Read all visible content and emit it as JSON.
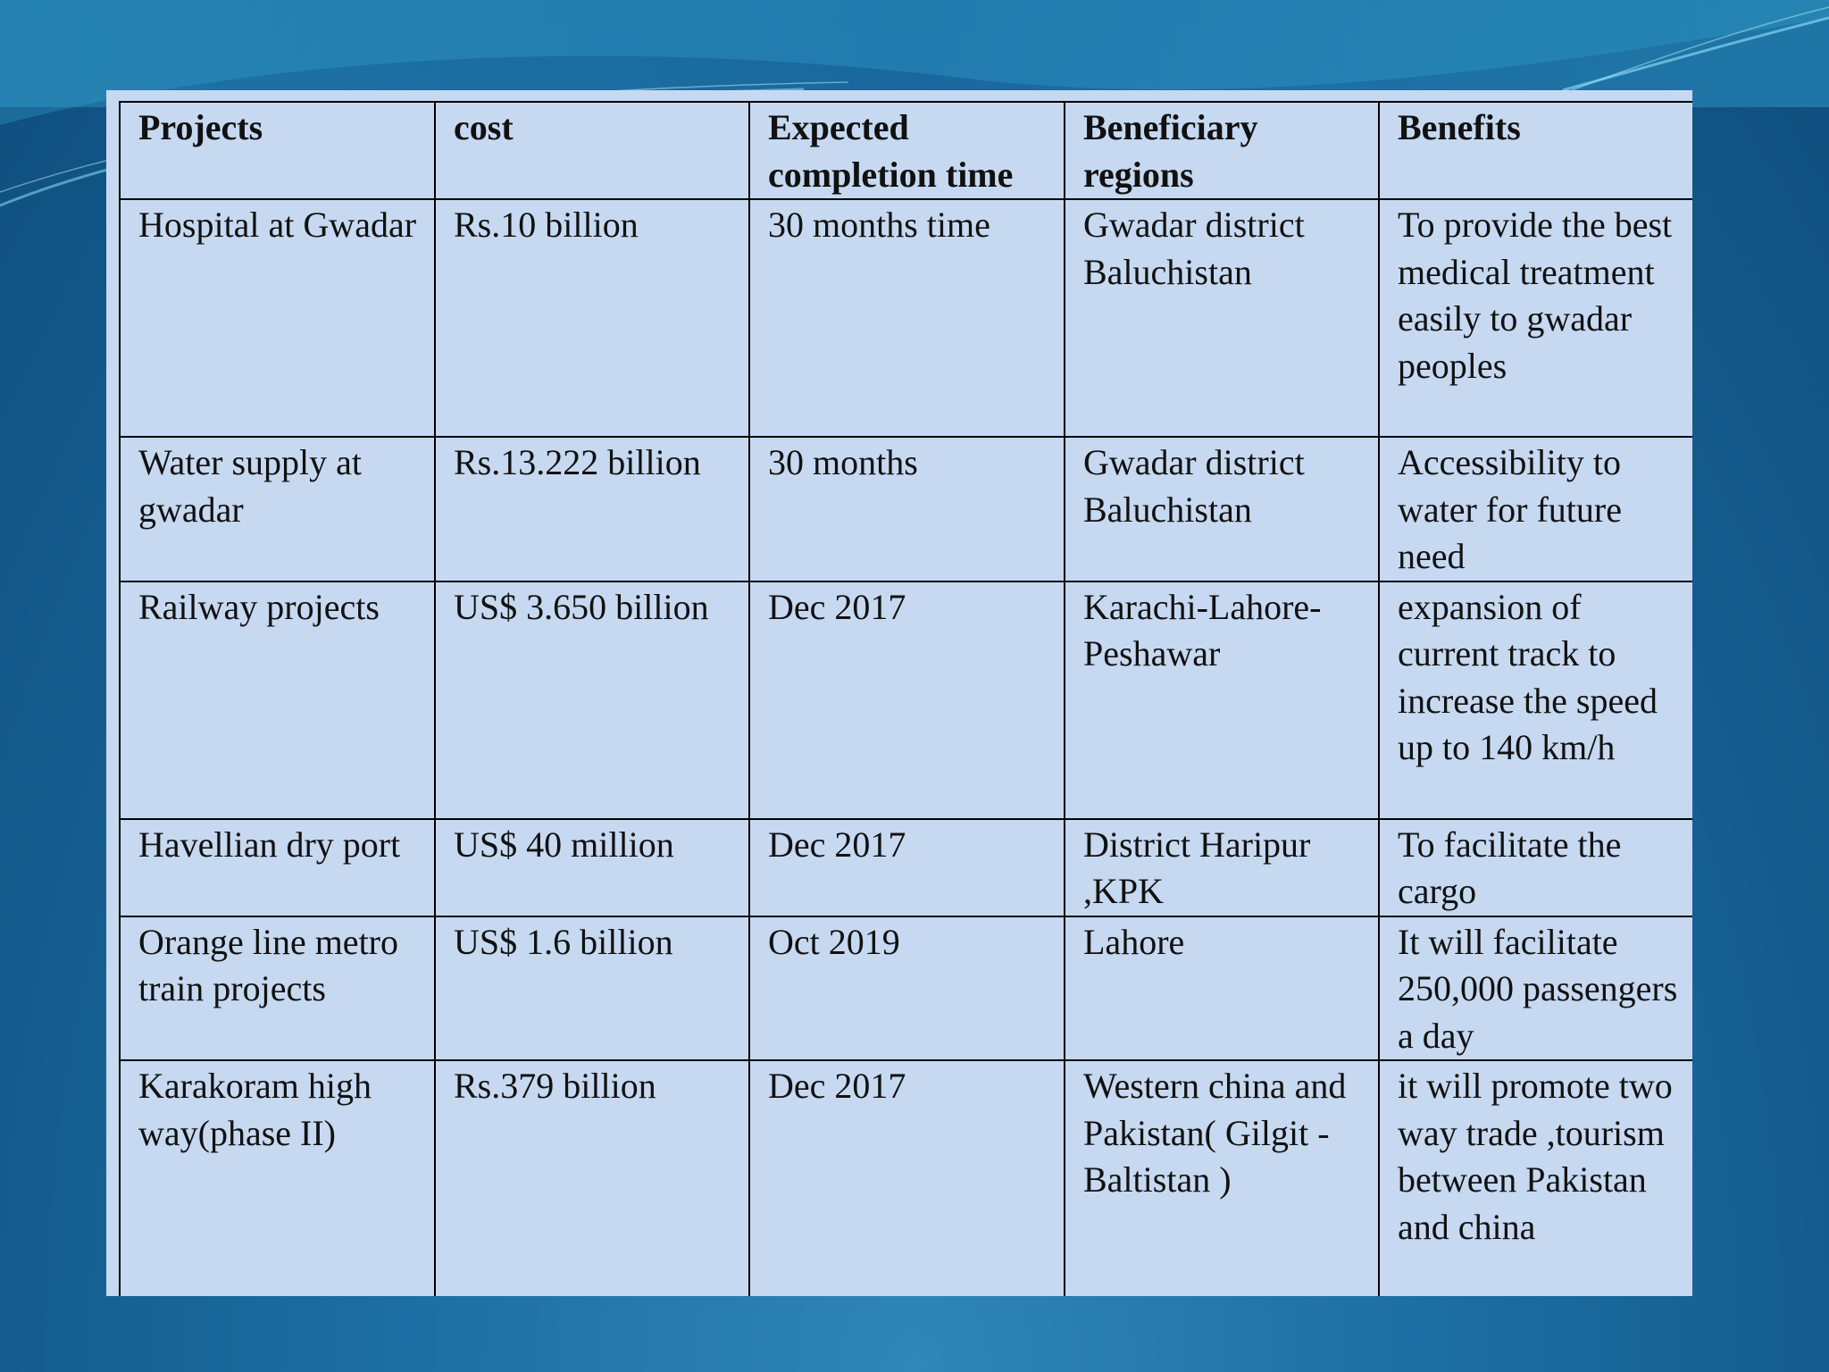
{
  "table": {
    "headers": [
      "Projects",
      "cost",
      "Expected completion time",
      "Beneficiary regions",
      "Benefits"
    ],
    "rows": [
      [
        "Hospital at Gwadar",
        "Rs.10 billion",
        "30 months time",
        "Gwadar district Baluchistan",
        "To provide the best medical treatment easily to gwadar peoples"
      ],
      [
        "Water supply at gwadar",
        "Rs.13.222 billion",
        "30 months",
        "Gwadar district Baluchistan",
        "Accessibility to water for future need"
      ],
      [
        "Railway projects",
        "US$ 3.650 billion",
        "Dec 2017",
        "Karachi-Lahore-Peshawar",
        "expansion of current track to increase the speed up to 140 km/h"
      ],
      [
        "Havellian dry port",
        "US$ 40 million",
        "Dec 2017",
        "District Haripur ,KPK",
        "To facilitate the cargo"
      ],
      [
        "Orange line metro train projects",
        "US$ 1.6 billion",
        "Oct 2019",
        "Lahore",
        "It will facilitate 250,000 passengers  a day"
      ],
      [
        "Karakoram high way(phase II)",
        "Rs.379 billion",
        "Dec 2017",
        "Western china and Pakistan( Gilgit -Baltistan )",
        "it will promote two way trade ,tourism between Pakistan and china"
      ]
    ]
  },
  "colors": {
    "table_fill": "#c6d9f1",
    "border": "#000000",
    "background": "#1d6ea3"
  }
}
